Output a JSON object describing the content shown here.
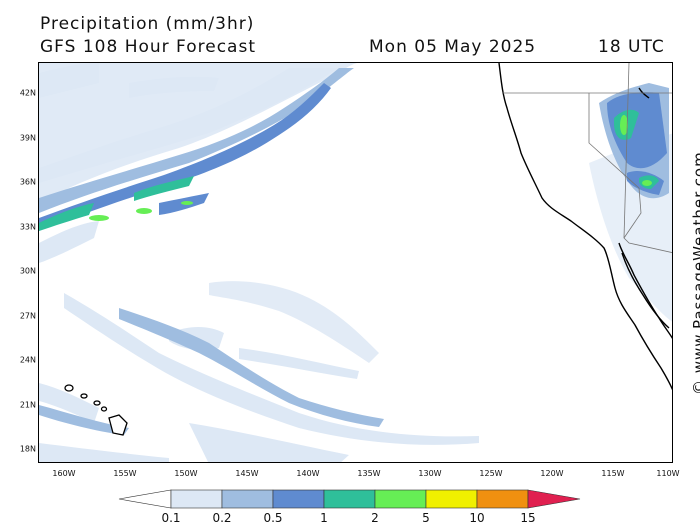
{
  "header": {
    "title": "Precipitation (mm/3hr)",
    "subtitle": "GFS 108 Hour Forecast",
    "valid_date": "Mon 05 May 2025",
    "valid_time": "18 UTC"
  },
  "credit": "© www.PassageWeather.com",
  "map": {
    "lon_range": [
      -162,
      -110
    ],
    "lat_range": [
      16.5,
      44.5
    ],
    "lat_ticks": [
      "42N",
      "39N",
      "36N",
      "33N",
      "30N",
      "27N",
      "24N",
      "21N",
      "18N"
    ],
    "lon_ticks": [
      "160W",
      "155W",
      "150W",
      "145W",
      "140W",
      "135W",
      "130W",
      "125W",
      "120W",
      "115W",
      "110W"
    ]
  },
  "legend": {
    "labels": [
      "0.1",
      "0.2",
      "0.5",
      "1",
      "2",
      "5",
      "10",
      "15"
    ],
    "colors": [
      "#ffffff",
      "#dde8f5",
      "#9fbde0",
      "#5f8bd0",
      "#2fbf9a",
      "#66ee55",
      "#f0f000",
      "#f09010",
      "#e02050"
    ]
  }
}
